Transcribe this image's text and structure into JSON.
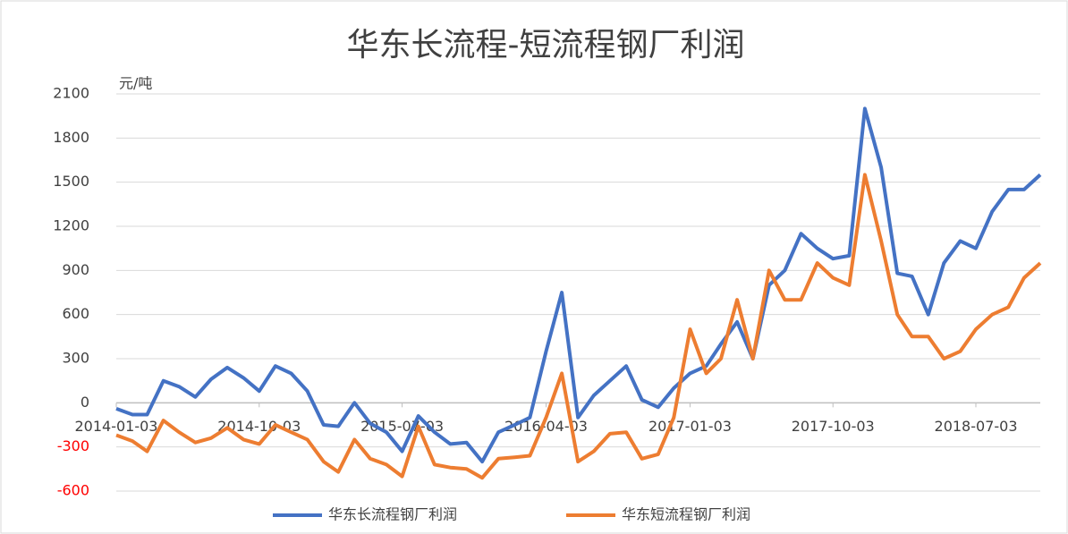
{
  "chart_data": {
    "type": "line",
    "title": "华东长流程-短流程钢厂利润",
    "y_label": "元/吨",
    "x": [
      "2014-01-03",
      "2014-02-03",
      "2014-03-03",
      "2014-04-03",
      "2014-05-03",
      "2014-06-03",
      "2014-07-03",
      "2014-08-03",
      "2014-09-03",
      "2014-10-03",
      "2014-11-03",
      "2014-12-03",
      "2015-01-03",
      "2015-02-03",
      "2015-03-03",
      "2015-04-03",
      "2015-05-03",
      "2015-06-03",
      "2015-07-03",
      "2015-08-03",
      "2015-09-03",
      "2015-10-03",
      "2015-11-03",
      "2015-12-03",
      "2016-01-03",
      "2016-02-03",
      "2016-03-03",
      "2016-04-03",
      "2016-05-03",
      "2016-06-03",
      "2016-07-03",
      "2016-08-03",
      "2016-09-03",
      "2016-10-03",
      "2016-11-03",
      "2016-12-03",
      "2017-01-03",
      "2017-02-03",
      "2017-03-03",
      "2017-04-03",
      "2017-05-03",
      "2017-06-03",
      "2017-07-03",
      "2017-08-03",
      "2017-09-03",
      "2017-10-03",
      "2017-11-03",
      "2017-12-03",
      "2018-01-03",
      "2018-02-03",
      "2018-03-03",
      "2018-04-03",
      "2018-05-03",
      "2018-06-03",
      "2018-07-03",
      "2018-08-03",
      "2018-09-03",
      "2018-10-03",
      "2018-11-03"
    ],
    "series": [
      {
        "name": "华东长流程钢厂利润",
        "color": "#4472c4",
        "values": [
          -40,
          -80,
          -80,
          150,
          110,
          40,
          160,
          240,
          170,
          80,
          250,
          200,
          80,
          -150,
          -160,
          0,
          -140,
          -200,
          -330,
          -90,
          -200,
          -280,
          -270,
          -400,
          -200,
          -150,
          -100,
          350,
          750,
          -100,
          50,
          150,
          250,
          20,
          -30,
          100,
          200,
          250,
          400,
          550,
          300,
          800,
          900,
          1150,
          1050,
          980,
          1000,
          2000,
          1600,
          880,
          860,
          600,
          950,
          1100,
          1050,
          1300,
          1450,
          1450,
          1550
        ]
      },
      {
        "name": "华东短流程钢厂利润",
        "color": "#ed7d31",
        "values": [
          -220,
          -260,
          -330,
          -120,
          -200,
          -270,
          -240,
          -170,
          -250,
          -280,
          -150,
          -200,
          -250,
          -400,
          -470,
          -250,
          -380,
          -420,
          -500,
          -160,
          -420,
          -440,
          -450,
          -510,
          -380,
          -370,
          -360,
          -100,
          200,
          -400,
          -330,
          -210,
          -200,
          -380,
          -350,
          -100,
          500,
          200,
          300,
          700,
          300,
          900,
          700,
          700,
          950,
          850,
          800,
          1550,
          1100,
          600,
          450,
          450,
          300,
          350,
          500,
          600,
          650,
          850,
          950
        ]
      }
    ],
    "xlim": [
      "2014-01-03",
      "2018-11-03"
    ],
    "xticks": [
      "2014-01-03",
      "2014-10-03",
      "2015-07-03",
      "2016-04-03",
      "2017-01-03",
      "2017-10-03",
      "2018-07-03"
    ],
    "ylim": [
      -600,
      2100
    ],
    "yticks": [
      -600,
      -300,
      0,
      300,
      600,
      900,
      1200,
      1500,
      1800,
      2100
    ],
    "grid": true,
    "negative_tick_color": "#ff0000",
    "legend": "bottom"
  }
}
